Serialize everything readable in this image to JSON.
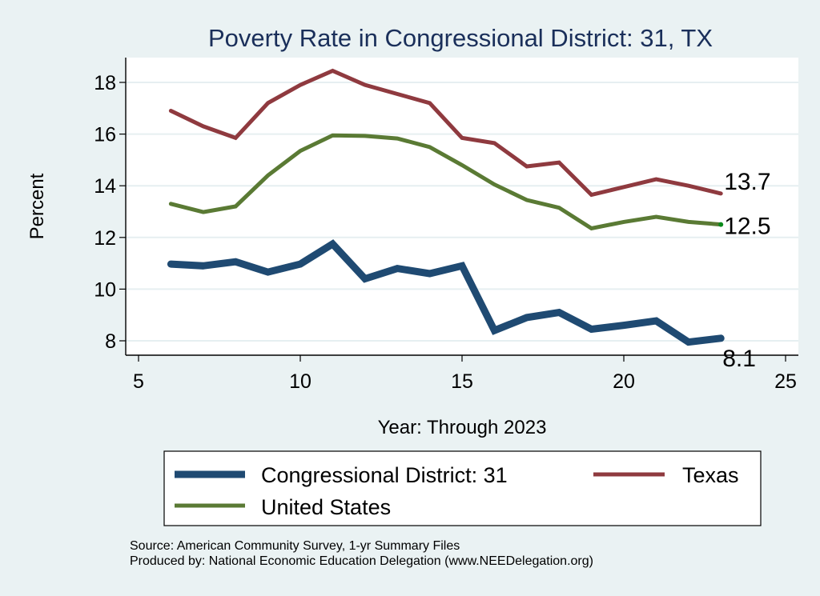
{
  "chart_data": {
    "type": "line",
    "title": "Poverty Rate in Congressional District:  31, TX",
    "xlabel": "Year: Through 2023",
    "ylabel": "Percent",
    "xlim": [
      4.6,
      25.4
    ],
    "ylim": [
      7.45,
      19.1
    ],
    "xticks": [
      5,
      10,
      15,
      20,
      25
    ],
    "yticks": [
      8,
      10,
      12,
      14,
      16,
      18
    ],
    "grid": true,
    "legend_position": "bottom",
    "x": [
      6,
      7,
      8,
      9,
      10,
      11,
      12,
      13,
      14,
      15,
      16,
      17,
      18,
      19,
      20,
      21,
      22,
      23
    ],
    "series": [
      {
        "name": "Congressional District:  31",
        "color": "#1f4a72",
        "width": 9,
        "values": [
          10.97,
          10.9,
          11.06,
          10.66,
          10.97,
          11.75,
          10.4,
          10.8,
          10.6,
          10.9,
          8.4,
          8.9,
          9.1,
          8.45,
          8.6,
          8.77,
          7.95,
          8.1
        ],
        "end_label": "8.1"
      },
      {
        "name": "Texas",
        "color": "#8f3a3f",
        "width": 5,
        "values": [
          16.9,
          16.3,
          15.85,
          17.2,
          17.9,
          18.45,
          17.9,
          17.55,
          17.2,
          15.85,
          15.65,
          14.75,
          14.9,
          13.65,
          13.95,
          14.25,
          14.0,
          13.7
        ],
        "end_label": "13.7"
      },
      {
        "name": "United States",
        "color": "#5a7a34",
        "width": 5,
        "values": [
          13.3,
          12.98,
          13.2,
          14.4,
          15.35,
          15.95,
          15.93,
          15.83,
          15.5,
          14.8,
          14.05,
          13.45,
          13.15,
          12.35,
          12.6,
          12.8,
          12.6,
          12.5
        ],
        "end_label": "12.5"
      }
    ]
  },
  "notes": {
    "source": "Source: American Community Survey, 1-yr Summary Files",
    "produced": "Produced by: National Economic Education Delegation (www.NEEDelegation.org)"
  }
}
